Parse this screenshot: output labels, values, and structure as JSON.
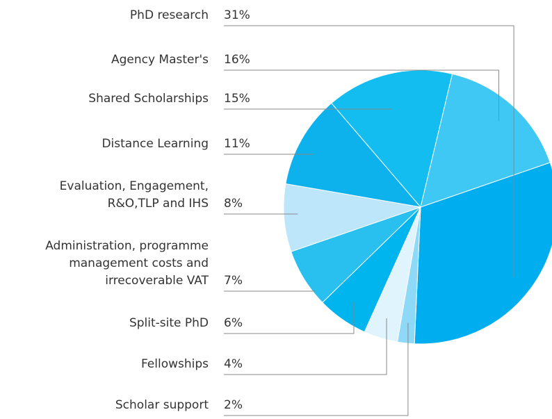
{
  "chart_data": {
    "type": "pie",
    "categories": [
      "PhD research",
      "Scholar support",
      "Fellowships",
      "Split-site PhD",
      "Administration, programme\nmanagement costs and\nirrecoverable VAT",
      "Evaluation, Engagement,\nR&O,TLP and IHS",
      "Distance Learning",
      "Shared Scholarships",
      "Agency Master's"
    ],
    "values": [
      31,
      2,
      4,
      6,
      7,
      8,
      11,
      15,
      16
    ],
    "value_labels": [
      "31%",
      "2%",
      "4%",
      "6%",
      "7%",
      "8%",
      "11%",
      "15%",
      "16%"
    ],
    "colors": [
      "#00aeef",
      "#8ed8f8",
      "#e0f4fd",
      "#00b4ee",
      "#29c0f0",
      "#bde6fa",
      "#0db2ec",
      "#14bdf0",
      "#40c8f4"
    ]
  }
}
